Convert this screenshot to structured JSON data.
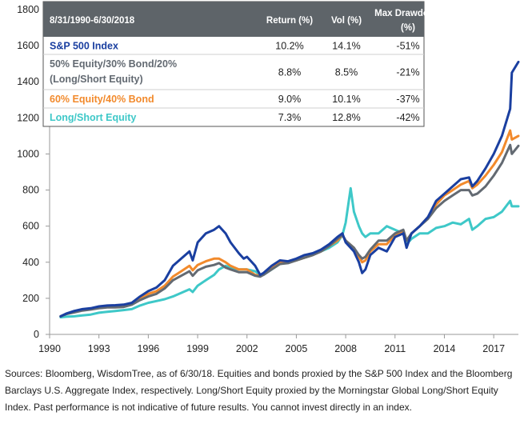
{
  "chart_data": {
    "type": "line",
    "xlim": [
      1990,
      2018.5
    ],
    "ylim": [
      0,
      1800
    ],
    "x_ticks": [
      "1990",
      "1993",
      "1996",
      "1999",
      "2002",
      "2005",
      "2008",
      "2011",
      "2014",
      "2017"
    ],
    "y_ticks": [
      "0",
      "200",
      "400",
      "600",
      "800",
      "1000",
      "1200",
      "1400",
      "1600",
      "1800"
    ],
    "series": [
      {
        "name": "S&P 500 Index",
        "color": "#1a3fa0",
        "x": [
          1990.67,
          1991.0,
          1991.5,
          1992.0,
          1992.5,
          1993.0,
          1993.5,
          1994.0,
          1994.5,
          1995.0,
          1995.5,
          1996.0,
          1996.5,
          1997.0,
          1997.5,
          1998.0,
          1998.5,
          1998.7,
          1999.0,
          1999.5,
          2000.0,
          2000.3,
          2000.7,
          2001.0,
          2001.5,
          2001.8,
          2002.0,
          2002.5,
          2002.8,
          2003.0,
          2003.5,
          2004.0,
          2004.5,
          2005.0,
          2005.5,
          2006.0,
          2006.5,
          2007.0,
          2007.5,
          2007.8,
          2008.0,
          2008.5,
          2008.8,
          2009.0,
          2009.2,
          2009.5,
          2010.0,
          2010.5,
          2011.0,
          2011.5,
          2011.7,
          2012.0,
          2012.5,
          2013.0,
          2013.5,
          2014.0,
          2014.5,
          2015.0,
          2015.5,
          2015.7,
          2016.0,
          2016.5,
          2017.0,
          2017.5,
          2018.0,
          2018.1,
          2018.5
        ],
        "values": [
          100,
          115,
          130,
          140,
          145,
          155,
          160,
          162,
          165,
          175,
          210,
          240,
          260,
          300,
          380,
          420,
          460,
          410,
          510,
          560,
          580,
          600,
          560,
          510,
          450,
          420,
          430,
          380,
          330,
          340,
          380,
          410,
          405,
          420,
          440,
          450,
          470,
          500,
          540,
          560,
          510,
          460,
          400,
          340,
          360,
          440,
          480,
          460,
          540,
          560,
          480,
          560,
          600,
          650,
          740,
          780,
          820,
          860,
          870,
          820,
          850,
          920,
          1000,
          1100,
          1250,
          1450,
          1510
        ]
      },
      {
        "name": "50% Equity/30% Bond/20% (Long/Short Equity)",
        "color": "#636a72",
        "x": [
          1990.67,
          1991.0,
          1991.5,
          1992.0,
          1992.5,
          1993.0,
          1993.5,
          1994.0,
          1994.5,
          1995.0,
          1995.5,
          1996.0,
          1996.5,
          1997.0,
          1997.5,
          1998.0,
          1998.5,
          1998.7,
          1999.0,
          1999.5,
          2000.0,
          2000.3,
          2000.7,
          2001.0,
          2001.5,
          2002.0,
          2002.5,
          2002.8,
          2003.0,
          2003.5,
          2004.0,
          2004.5,
          2005.0,
          2005.5,
          2006.0,
          2006.5,
          2007.0,
          2007.5,
          2007.8,
          2008.0,
          2008.5,
          2008.8,
          2009.0,
          2009.2,
          2009.5,
          2010.0,
          2010.5,
          2011.0,
          2011.5,
          2011.7,
          2012.0,
          2012.5,
          2013.0,
          2013.5,
          2014.0,
          2014.5,
          2015.0,
          2015.5,
          2015.7,
          2016.0,
          2016.5,
          2017.0,
          2017.5,
          2018.0,
          2018.1,
          2018.5
        ],
        "values": [
          100,
          112,
          122,
          132,
          138,
          145,
          150,
          150,
          152,
          165,
          190,
          210,
          225,
          255,
          300,
          325,
          350,
          325,
          355,
          375,
          385,
          395,
          370,
          360,
          345,
          345,
          325,
          320,
          330,
          360,
          390,
          395,
          410,
          425,
          440,
          460,
          490,
          530,
          550,
          520,
          480,
          440,
          420,
          430,
          470,
          520,
          520,
          560,
          580,
          520,
          560,
          600,
          640,
          700,
          740,
          770,
          800,
          800,
          770,
          780,
          820,
          880,
          950,
          1050,
          1000,
          1045
        ]
      },
      {
        "name": "60% Equity/40% Bond",
        "color": "#f28a2c",
        "x": [
          1990.67,
          1991.0,
          1991.5,
          1992.0,
          1992.5,
          1993.0,
          1993.5,
          1994.0,
          1994.5,
          1995.0,
          1995.5,
          1996.0,
          1996.5,
          1997.0,
          1997.5,
          1998.0,
          1998.5,
          1998.7,
          1999.0,
          1999.5,
          2000.0,
          2000.3,
          2000.7,
          2001.0,
          2001.5,
          2002.0,
          2002.5,
          2002.8,
          2003.0,
          2003.5,
          2004.0,
          2004.5,
          2005.0,
          2005.5,
          2006.0,
          2006.5,
          2007.0,
          2007.5,
          2007.8,
          2008.0,
          2008.5,
          2008.8,
          2009.0,
          2009.2,
          2009.5,
          2010.0,
          2010.5,
          2011.0,
          2011.5,
          2011.7,
          2012.0,
          2012.5,
          2013.0,
          2013.5,
          2014.0,
          2014.5,
          2015.0,
          2015.5,
          2015.7,
          2016.0,
          2016.5,
          2017.0,
          2017.5,
          2018.0,
          2018.1,
          2018.5
        ],
        "values": [
          100,
          113,
          125,
          135,
          140,
          148,
          155,
          155,
          157,
          170,
          200,
          225,
          240,
          270,
          320,
          350,
          380,
          355,
          385,
          405,
          420,
          420,
          400,
          380,
          360,
          360,
          330,
          325,
          335,
          370,
          400,
          400,
          410,
          425,
          440,
          460,
          490,
          520,
          550,
          520,
          480,
          430,
          400,
          410,
          460,
          500,
          500,
          550,
          570,
          520,
          560,
          600,
          650,
          720,
          770,
          800,
          830,
          850,
          810,
          830,
          880,
          940,
          1010,
          1130,
          1080,
          1100
        ]
      },
      {
        "name": "Long/Short Equity",
        "color": "#3ec8c8",
        "x": [
          1990.67,
          1991.0,
          1991.5,
          1992.0,
          1992.5,
          1993.0,
          1993.5,
          1994.0,
          1994.5,
          1995.0,
          1995.5,
          1996.0,
          1996.5,
          1997.0,
          1997.5,
          1998.0,
          1998.5,
          1998.7,
          1999.0,
          1999.5,
          2000.0,
          2000.3,
          2000.7,
          2001.0,
          2001.5,
          2002.0,
          2002.5,
          2002.8,
          2003.0,
          2003.5,
          2004.0,
          2004.5,
          2005.0,
          2005.5,
          2006.0,
          2006.5,
          2007.0,
          2007.5,
          2007.8,
          2008.0,
          2008.3,
          2008.5,
          2008.8,
          2009.0,
          2009.2,
          2009.5,
          2010.0,
          2010.5,
          2011.0,
          2011.5,
          2011.7,
          2012.0,
          2012.5,
          2013.0,
          2013.5,
          2014.0,
          2014.5,
          2015.0,
          2015.5,
          2015.7,
          2016.0,
          2016.5,
          2017.0,
          2017.5,
          2018.0,
          2018.1,
          2018.5
        ],
        "values": [
          95,
          98,
          100,
          105,
          110,
          120,
          125,
          130,
          135,
          140,
          160,
          175,
          185,
          195,
          210,
          230,
          250,
          235,
          270,
          300,
          330,
          360,
          380,
          370,
          360,
          360,
          350,
          330,
          330,
          360,
          390,
          400,
          410,
          425,
          440,
          460,
          480,
          510,
          550,
          620,
          810,
          680,
          600,
          560,
          540,
          560,
          560,
          600,
          580,
          560,
          500,
          530,
          560,
          560,
          590,
          600,
          620,
          610,
          640,
          580,
          600,
          640,
          650,
          680,
          740,
          710,
          710
        ]
      }
    ],
    "table": {
      "headers": [
        "8/31/1990-6/30/2018",
        "Return (%)",
        "Vol (%)",
        "Max Drawdown (%)"
      ],
      "header_bg": "#5e6469",
      "rows": [
        {
          "name_lines": [
            "S&P 500 Index"
          ],
          "return": "10.2%",
          "vol": "14.1%",
          "dd": "-51%",
          "color": "#1a3fa0"
        },
        {
          "name_lines": [
            "50% Equity/30% Bond/20%",
            "(Long/Short Equity)"
          ],
          "return": "8.8%",
          "vol": "8.5%",
          "dd": "-21%",
          "color": "#636a72"
        },
        {
          "name_lines": [
            "60% Equity/40% Bond"
          ],
          "return": "9.0%",
          "vol": "10.1%",
          "dd": "-37%",
          "color": "#f28a2c"
        },
        {
          "name_lines": [
            "Long/Short Equity"
          ],
          "return": "7.3%",
          "vol": "12.8%",
          "dd": "-42%",
          "color": "#3ec8c8"
        }
      ]
    }
  },
  "source_note": "Sources: Bloomberg, WisdomTree, as of 6/30/18. Equities and bonds proxied by the S&P 500 Index and the Bloomberg Barclays U.S. Aggregate Index, respectively. Long/Short Equity proxied by the Morningstar Global Long/Short Equity Index. Past performance is not indicative of future results. You cannot invest directly in an index."
}
